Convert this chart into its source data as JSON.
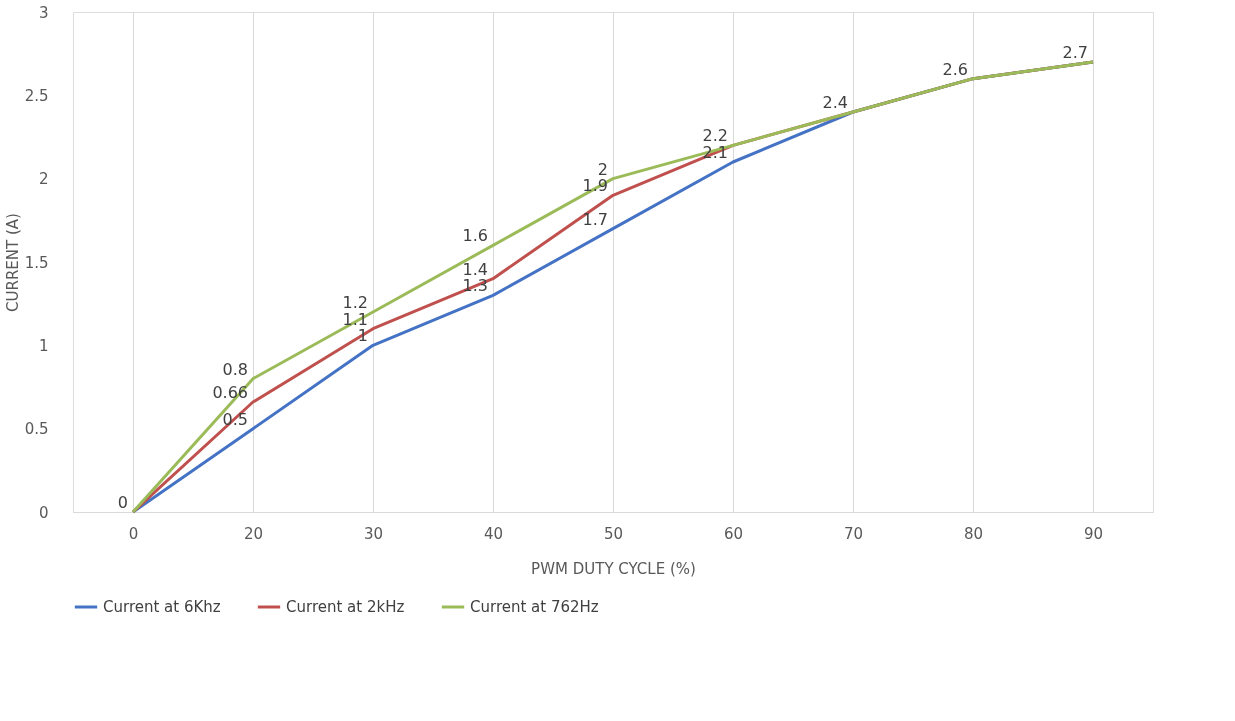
{
  "chart_data": {
    "type": "line",
    "xlabel": "PWM DUTY CYCLE (%)",
    "ylabel": "CURRENT (A)",
    "categories": [
      "0",
      "20",
      "30",
      "40",
      "50",
      "60",
      "70",
      "80",
      "90"
    ],
    "series": [
      {
        "name": "Current at 6Khz",
        "color": "#4472c4",
        "values": [
          0,
          0.5,
          1,
          1.3,
          1.7,
          2.1,
          2.4,
          2.6,
          2.7
        ],
        "value_labels": [
          "0",
          "0.5",
          "1",
          "1.3",
          "1.7",
          "2.1",
          "2.4",
          "2.6",
          "2.7"
        ]
      },
      {
        "name": "Current at 2kHz",
        "color": "#c0504d",
        "values": [
          0,
          0.66,
          1.1,
          1.4,
          1.9,
          2.2,
          2.4,
          2.6,
          2.7
        ],
        "value_labels": [
          null,
          "0.66",
          "1.1",
          "1.4",
          "1.9",
          "2.2",
          null,
          null,
          null
        ]
      },
      {
        "name": "Current at 762Hz",
        "color": "#9bbb59",
        "values": [
          0,
          0.8,
          1.2,
          1.6,
          2,
          2.2,
          2.4,
          2.6,
          2.7
        ],
        "value_labels": [
          null,
          "0.8",
          "1.2",
          "1.6",
          "2",
          null,
          null,
          null,
          null
        ]
      }
    ],
    "ylim": [
      0,
      3
    ],
    "yticks": [
      0,
      0.5,
      1,
      1.5,
      2,
      2.5,
      3
    ],
    "grid": "x",
    "legend": "bottom",
    "marker": "none",
    "line_style": "solid"
  }
}
